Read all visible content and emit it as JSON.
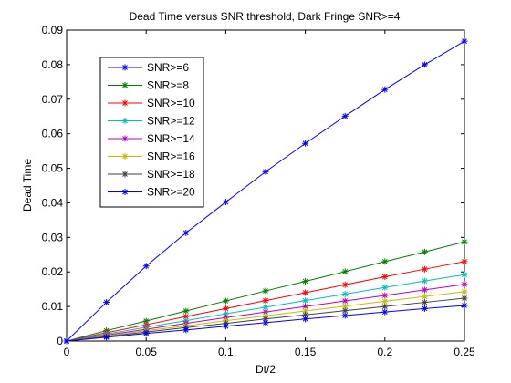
{
  "chart_data": {
    "type": "line",
    "title": "Dead Time versus SNR threshold, Dark Fringe SNR>=4",
    "xlabel": "Dt/2",
    "ylabel": "Dead Time",
    "xlim": [
      0,
      0.25
    ],
    "ylim": [
      0,
      0.09
    ],
    "x_ticks": [
      "0",
      "0.05",
      "0.1",
      "0.15",
      "0.2",
      "0.25"
    ],
    "y_ticks": [
      "0",
      "0.01",
      "0.02",
      "0.03",
      "0.04",
      "0.05",
      "0.06",
      "0.07",
      "0.08",
      "0.09"
    ],
    "grid": false,
    "legend_position": "top-left",
    "marker": "asterisk",
    "x": [
      0,
      0.025,
      0.05,
      0.075,
      0.1,
      0.125,
      0.15,
      0.175,
      0.2,
      0.225,
      0.25
    ],
    "series": [
      {
        "name": "SNR>=6",
        "color": "#0000ff",
        "values": [
          0,
          0.0112,
          0.0217,
          0.0313,
          0.0402,
          0.049,
          0.0572,
          0.0651,
          0.0728,
          0.08,
          0.0868
        ]
      },
      {
        "name": "SNR>=8",
        "color": "#008000",
        "values": [
          0,
          0.003,
          0.0058,
          0.0087,
          0.0116,
          0.0145,
          0.0173,
          0.0201,
          0.023,
          0.0258,
          0.0287
        ]
      },
      {
        "name": "SNR>=10",
        "color": "#ff0000",
        "values": [
          0,
          0.0024,
          0.0047,
          0.0071,
          0.0094,
          0.0117,
          0.014,
          0.0163,
          0.0186,
          0.0208,
          0.023
        ]
      },
      {
        "name": "SNR>=12",
        "color": "#00bfbf",
        "values": [
          0,
          0.002,
          0.004,
          0.0059,
          0.0079,
          0.0098,
          0.0117,
          0.0136,
          0.0155,
          0.0174,
          0.0192
        ]
      },
      {
        "name": "SNR>=14",
        "color": "#bf00bf",
        "values": [
          0,
          0.0017,
          0.0034,
          0.0051,
          0.0068,
          0.0084,
          0.01,
          0.0116,
          0.0132,
          0.0148,
          0.0164
        ]
      },
      {
        "name": "SNR>=16",
        "color": "#bfbf00",
        "values": [
          0,
          0.0015,
          0.003,
          0.0044,
          0.0059,
          0.0073,
          0.0087,
          0.0101,
          0.0115,
          0.0129,
          0.0143
        ]
      },
      {
        "name": "SNR>=18",
        "color": "#404040",
        "values": [
          0,
          0.0013,
          0.0026,
          0.0039,
          0.0051,
          0.0064,
          0.0076,
          0.0088,
          0.01,
          0.0112,
          0.0124
        ]
      },
      {
        "name": "SNR>=20",
        "color": "#0000ff",
        "values": [
          0,
          0.0011,
          0.0022,
          0.0032,
          0.0043,
          0.0053,
          0.0064,
          0.0074,
          0.0084,
          0.0094,
          0.0103
        ]
      }
    ]
  }
}
